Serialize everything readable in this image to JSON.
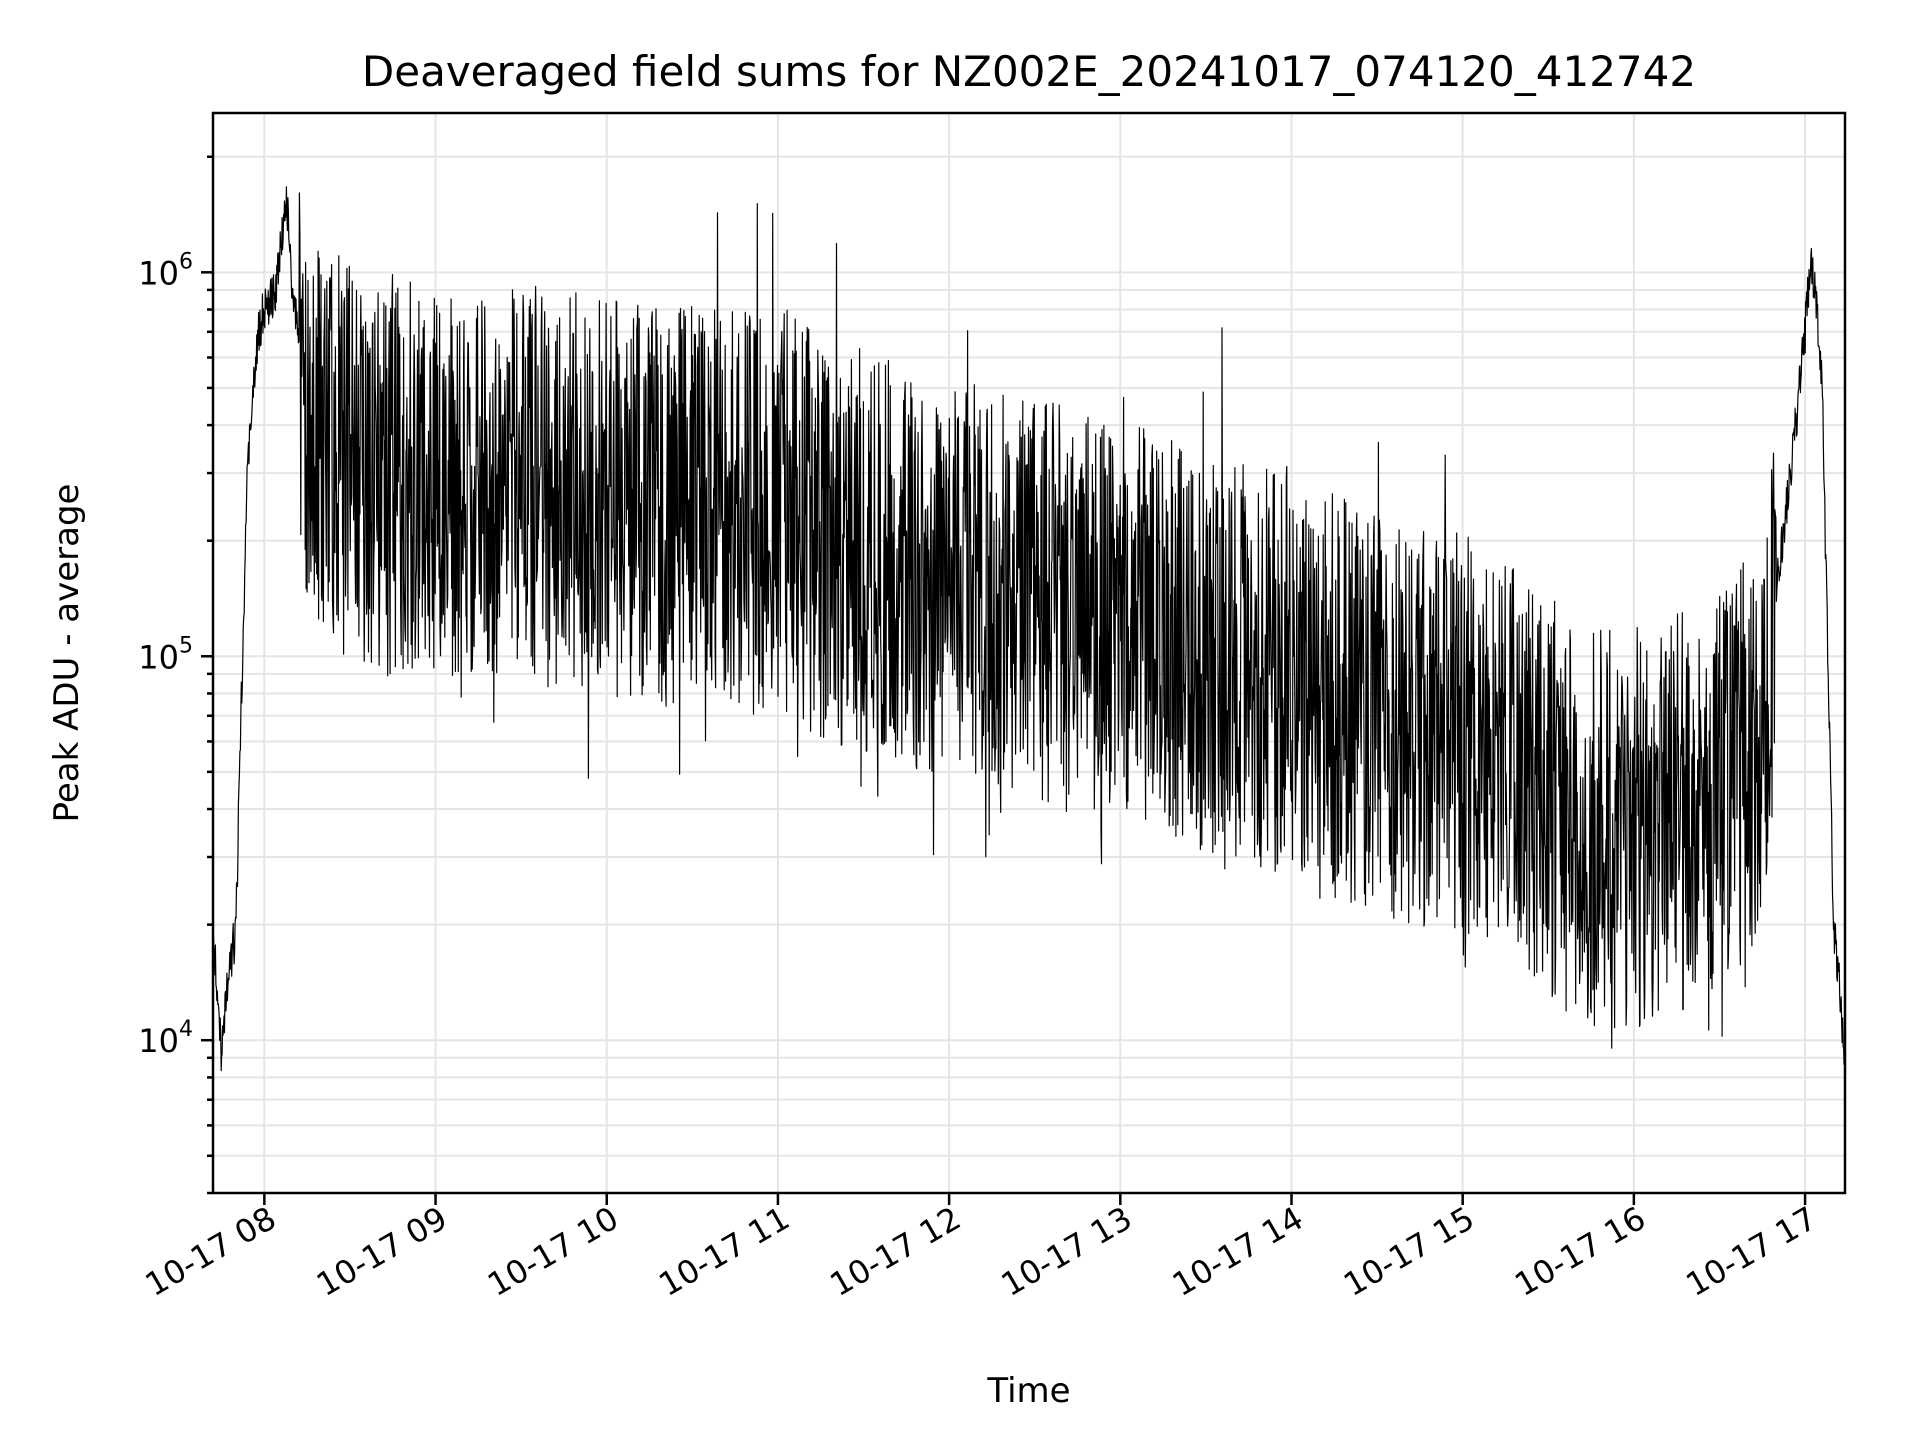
{
  "chart_data": {
    "type": "line",
    "title": "Deaveraged field sums for NZ002E_20241017_074120_412742",
    "xlabel": "Time",
    "ylabel": "Peak ADU - average",
    "yscale": "log",
    "xlim": [
      "10-17 07:42",
      "10-17 17:14"
    ],
    "ylim": [
      4000,
      2600000
    ],
    "grid": true,
    "x_ticks": [
      "10-17 08",
      "10-17 09",
      "10-17 10",
      "10-17 11",
      "10-17 12",
      "10-17 13",
      "10-17 14",
      "10-17 15",
      "10-17 16",
      "10-17 17"
    ],
    "y_ticks": [
      {
        "base": "10",
        "exp": "4",
        "value": 10000
      },
      {
        "base": "10",
        "exp": "5",
        "value": 100000
      },
      {
        "base": "10",
        "exp": "6",
        "value": 1000000
      }
    ],
    "line_color": "#000000",
    "series": [
      {
        "x": [
          "07:42",
          "07:43",
          "07:44",
          "07:45",
          "07:46",
          "07:47",
          "07:48",
          "07:50",
          "07:52",
          "07:54",
          "07:56",
          "07:58",
          "08:00",
          "08:02",
          "08:04",
          "08:06",
          "08:08",
          "08:10",
          "08:15",
          "08:20",
          "08:25",
          "08:30",
          "08:40",
          "08:50",
          "09:00",
          "09:15",
          "09:30",
          "09:45",
          "10:00",
          "10:15",
          "10:30",
          "10:45",
          "11:00",
          "11:15",
          "11:30",
          "11:45",
          "12:00",
          "12:15",
          "12:30",
          "12:45",
          "13:00",
          "13:15",
          "13:30",
          "13:45",
          "14:00",
          "14:15",
          "14:30",
          "14:45",
          "15:00",
          "15:15",
          "15:30",
          "15:45",
          "16:00",
          "16:15",
          "16:30",
          "16:45",
          "16:50",
          "16:55",
          "17:00",
          "17:02",
          "17:04",
          "17:06",
          "17:08",
          "17:10",
          "17:12",
          "17:14"
        ],
        "y": [
          18000,
          15000,
          12000,
          9000,
          11000,
          14000,
          16000,
          19000,
          80000,
          300000,
          500000,
          700000,
          800000,
          850000,
          900000,
          1200000,
          1500000,
          800000,
          600000,
          500000,
          450000,
          400000,
          380000,
          360000,
          350000,
          380000,
          360000,
          340000,
          330000,
          320000,
          310000,
          300000,
          320000,
          260000,
          240000,
          220000,
          200000,
          190000,
          180000,
          170000,
          160000,
          150000,
          130000,
          120000,
          120000,
          100000,
          90000,
          85000,
          80000,
          70000,
          55000,
          45000,
          45000,
          50000,
          55000,
          80000,
          150000,
          300000,
          700000,
          1100000,
          800000,
          500000,
          100000,
          20000,
          14000,
          8000
        ]
      }
    ]
  }
}
